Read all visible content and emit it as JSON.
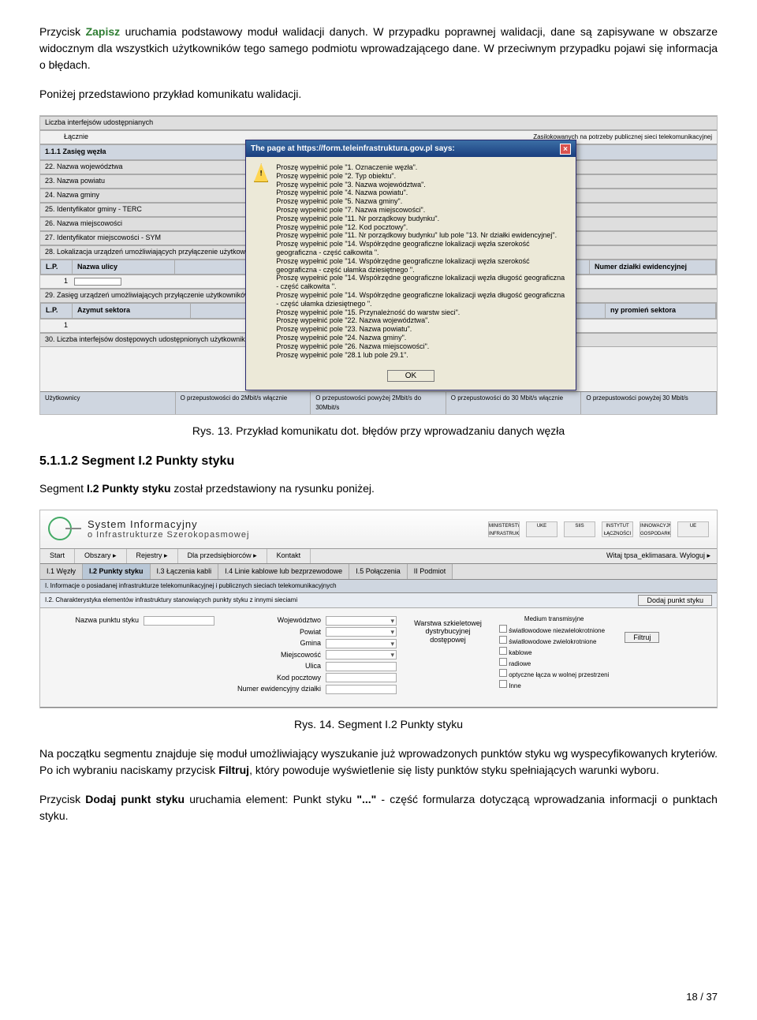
{
  "intro": {
    "p1_a": "Przycisk ",
    "p1_b": "Zapisz",
    "p1_c": " uruchamia podstawowy moduł walidacji danych. W przypadku poprawnej walidacji, dane są zapisywane w obszarze widocznym dla wszystkich użytkowników tego samego podmiotu wprowadzającego dane. W przeciwnym przypadku pojawi się informacja o błędach.",
    "p2": "Poniżej przedstawiono przykład komunikatu walidacji."
  },
  "shot1": {
    "rows_top": [
      "Liczba interfejsów udostępnianych",
      "Łącznie"
    ],
    "section_top_right": "Zasilokowanych na potrzeby publicznej sieci telekomunikacyjnej",
    "section_header": "1.1.1 Zasięg węzła",
    "rows_mid": [
      "22. Nazwa województwa",
      "23. Nazwa powiatu",
      "24. Nazwa gminy",
      "25. Identyfikator gminy - TERC",
      "26. Nazwa miejscowości",
      "27. Identyfikator miejscowości - SYM",
      "28. Lokalizacja urządzeń umożliwiających przyłączenie użytkowników końcowych"
    ],
    "th1_lp": "L.P.",
    "th1_nu": "Nazwa ulicy",
    "th1_nd": "Numer działki ewidencyjnej",
    "row29": "29. Zasięg urządzeń umożliwiających przyłączenie użytkowników końcowych w radiowej sieci dostępowej",
    "th2_lp": "L.P.",
    "th2_az": "Azymut sektora",
    "th2_pr": "ny promień sektora",
    "row30": "30. Liczba interfejsów dostępowych udostępnionych użytkownikom końcowym",
    "footer": {
      "c1": "Użytkownicy",
      "c2": "O przepustowości do 2Mbit/s włącznie",
      "c3": "O przepustowości powyżej 2Mbit/s do 30Mbit/s",
      "c4": "O przepustowości do 30 Mbit/s włącznie",
      "c5": "O przepustowości powyżej 30 Mbit/s"
    },
    "dialog": {
      "title": "The page at https://form.teleinfrastruktura.gov.pl says:",
      "lines": [
        "Proszę wypełnić pole \"1. Oznaczenie węzła\".",
        "Proszę wypełnić pole \"2. Typ obiektu\".",
        "Proszę wypełnić pole \"3. Nazwa województwa\".",
        "Proszę wypełnić pole \"4. Nazwa powiatu\".",
        "Proszę wypełnić pole \"5. Nazwa gminy\".",
        "Proszę wypełnić pole \"7. Nazwa miejscowości\".",
        "Proszę wypełnić pole \"11. Nr porządkowy budynku\".",
        "Proszę wypełnić pole \"12. Kod pocztowy\".",
        "Proszę wypełnić pole \"11. Nr porządkowy budynku\" lub pole \"13. Nr działki ewidencyjnej\".",
        "Proszę wypełnić pole \"14. Współrzędne geograficzne lokalizacji węzła szerokość geograficzna - część całkowita \".",
        "Proszę wypełnić pole \"14. Współrzędne geograficzne lokalizacji węzła szerokość geograficzna - część ułamka dziesiętnego \".",
        "Proszę wypełnić pole \"14. Współrzędne geograficzne lokalizacji węzła długość geograficzna - część całkowita \".",
        "Proszę wypełnić pole \"14. Współrzędne geograficzne lokalizacji węzła długość geograficzna - część ułamka dziesiętnego \".",
        "Proszę wypełnić pole \"15. Przynależność do warstw sieci\".",
        "Proszę wypełnić pole \"22. Nazwa województwa\".",
        "Proszę wypełnić pole \"23. Nazwa powiatu\".",
        "Proszę wypełnić pole \"24. Nazwa gminy\".",
        "Proszę wypełnić pole \"26. Nazwa miejscowości\".",
        "Proszę wypełnić pole \"28.1 lub pole 29.1\"."
      ],
      "ok": "OK"
    }
  },
  "caption1": "Rys. 13. Przykład komunikatu dot. błędów przy wprowadzaniu danych węzła",
  "h_5112": "5.1.1.2  Segment I.2 Punkty styku",
  "p_seg": {
    "a": "Segment ",
    "b": "I.2 Punkty styku",
    "c": " został przedstawiony na rysunku poniżej."
  },
  "shot2": {
    "title1": "System Informacyjny",
    "title2": "o Infrastrukturze Szerokopasmowej",
    "logos": [
      "MINISTERSTWO INFRASTRUKTURY",
      "UKE",
      "SIIS",
      "INSTYTUT ŁĄCZNOŚCI",
      "INNOWACYJNA GOSPODARKA",
      "UE"
    ],
    "menu": [
      "Start",
      "Obszary ▸",
      "Rejestry ▸",
      "Dla przedsiębiorców ▸",
      "Kontakt"
    ],
    "menu_right": "Witaj tpsa_eklimasara. Wyloguj ▸",
    "tabs": [
      "I.1 Węzły",
      "I.2 Punkty styku",
      "I.3 Łączenia kabli",
      "I.4 Linie kablowe lub bezprzewodowe",
      "I.5 Połączenia",
      "II Podmiot"
    ],
    "sec1": "I. Informacje o posiadanej infrastrukturze telekomunikacyjnej i publicznych sieciach telekomunikacyjnych",
    "sec2": "I.2. Charakterystyka elementów infrastruktury stanowiących punkty styku z innymi sieciami",
    "btn_add": "Dodaj punkt styku",
    "leftlbl": "Nazwa punktu styku",
    "col2_labels": [
      "Województwo",
      "Powiat",
      "Gmina",
      "Miejscowość",
      "Ulica",
      "Kod pocztowy",
      "Numer ewidencyjny działki"
    ],
    "col3_label": "Warstwa szkieletowej dystrybucyjnej dostępowej",
    "col4_header": "Medium transmisyjne",
    "col4_items": [
      "światłowodowe niezwielokrotnione",
      "światłowodowe zwielokrotnione",
      "kablowe",
      "radiowe",
      "optyczne łącza w wolnej przestrzeni",
      "Inne"
    ],
    "btn_filter": "Filtruj"
  },
  "caption2": "Rys. 14. Segment I.2 Punkty styku",
  "para3": {
    "a": "Na początku segmentu znajduje się moduł umożliwiający wyszukanie już wprowadzonych punktów styku wg wyspecyfikowanych kryteriów. Po ich wybraniu naciskamy przycisk ",
    "b": "Filtruj",
    "c": ", który powoduje wyświetlenie się listy punktów styku spełniających warunki wyboru."
  },
  "para4": {
    "a": "Przycisk ",
    "b": "Dodaj punkt styku",
    "c": " uruchamia element: Punkt styku ",
    "d": "\"...\"",
    "e": " - część formularza dotyczącą wprowadzania informacji o punktach styku."
  },
  "pagenum": "18 / 37"
}
